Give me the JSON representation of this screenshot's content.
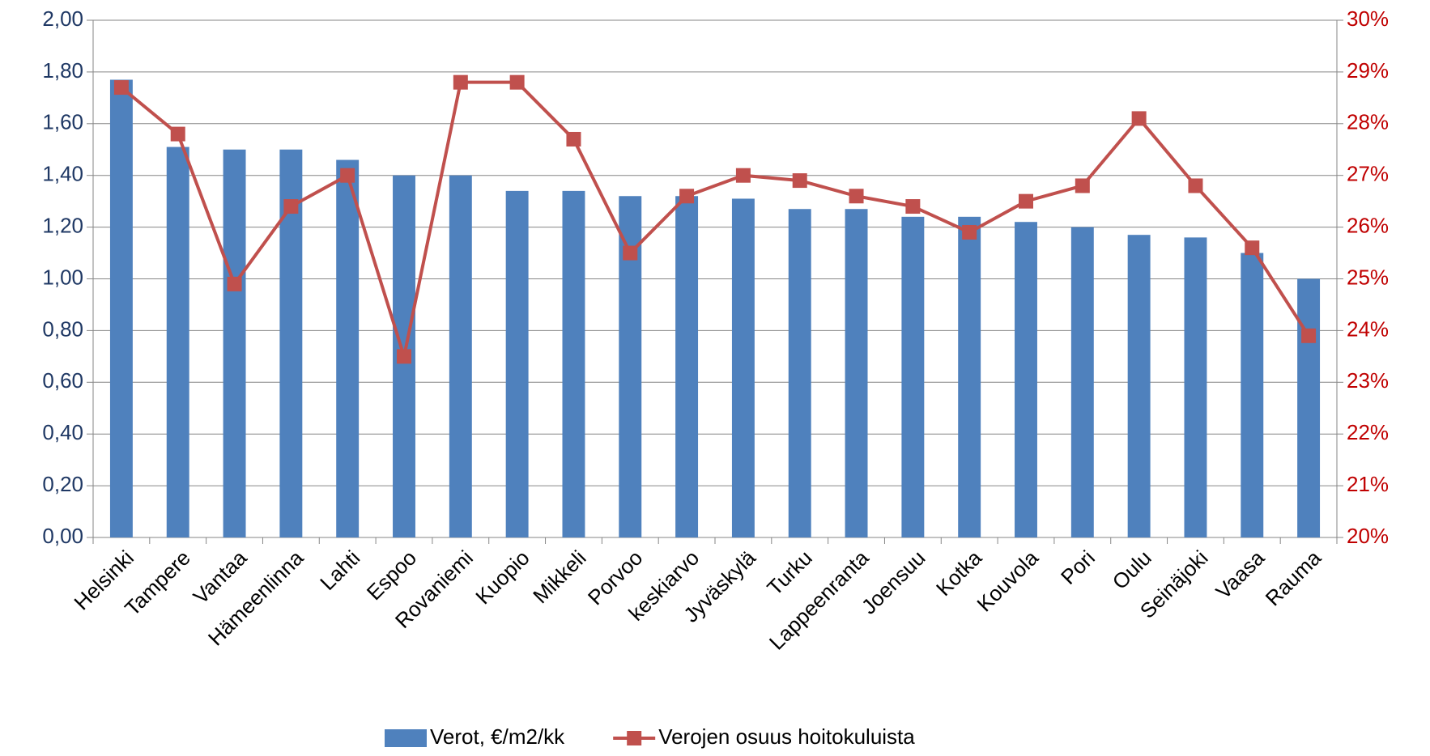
{
  "chart_data": {
    "type": "bar_line",
    "categories": [
      "Helsinki",
      "Tampere",
      "Vantaa",
      "Hämeenlinna",
      "Lahti",
      "Espoo",
      "Rovaniemi",
      "Kuopio",
      "Mikkeli",
      "Porvoo",
      "keskiarvo",
      "Jyväskylä",
      "Turku",
      "Lappeenranta",
      "Joensuu",
      "Kotka",
      "Kouvola",
      "Pori",
      "Oulu",
      "Seinäjoki",
      "Vaasa",
      "Rauma"
    ],
    "series": [
      {
        "name": "Verot, €/m2/kk",
        "type": "bar",
        "color": "#4f81bd",
        "values": [
          1.77,
          1.51,
          1.5,
          1.5,
          1.46,
          1.4,
          1.4,
          1.34,
          1.34,
          1.32,
          1.32,
          1.31,
          1.27,
          1.27,
          1.24,
          1.24,
          1.22,
          1.2,
          1.17,
          1.16,
          1.1,
          1.0
        ]
      },
      {
        "name": "Verojen osuus hoitokuluista",
        "type": "line",
        "axis": "y2",
        "color": "#c0504d",
        "values": [
          28.7,
          27.8,
          24.9,
          26.4,
          27.0,
          23.5,
          28.8,
          28.8,
          27.7,
          25.5,
          26.6,
          27.0,
          26.9,
          26.6,
          26.4,
          25.9,
          26.5,
          26.8,
          28.1,
          26.8,
          25.6,
          23.9
        ]
      }
    ],
    "ylim": [
      0,
      2
    ],
    "yticks": [
      {
        "value": 0,
        "label": "0,00"
      },
      {
        "value": 0.2,
        "label": "0,20"
      },
      {
        "value": 0.4,
        "label": "0,40"
      },
      {
        "value": 0.6,
        "label": "0,60"
      },
      {
        "value": 0.8,
        "label": "0,80"
      },
      {
        "value": 1,
        "label": "1,00"
      },
      {
        "value": 1.2,
        "label": "1,20"
      },
      {
        "value": 1.4,
        "label": "1,40"
      },
      {
        "value": 1.6,
        "label": "1,60"
      },
      {
        "value": 1.8,
        "label": "1,80"
      },
      {
        "value": 2,
        "label": "2,00"
      }
    ],
    "y2lim": [
      20,
      30
    ],
    "y2ticks": [
      {
        "value": 20,
        "label": "20%"
      },
      {
        "value": 21,
        "label": "21%"
      },
      {
        "value": 22,
        "label": "22%"
      },
      {
        "value": 23,
        "label": "23%"
      },
      {
        "value": 24,
        "label": "24%"
      },
      {
        "value": 25,
        "label": "25%"
      },
      {
        "value": 26,
        "label": "26%"
      },
      {
        "value": 27,
        "label": "27%"
      },
      {
        "value": 28,
        "label": "28%"
      },
      {
        "value": 29,
        "label": "29%"
      },
      {
        "value": 30,
        "label": "30%"
      }
    ],
    "grid": true,
    "legend": "bottom"
  }
}
